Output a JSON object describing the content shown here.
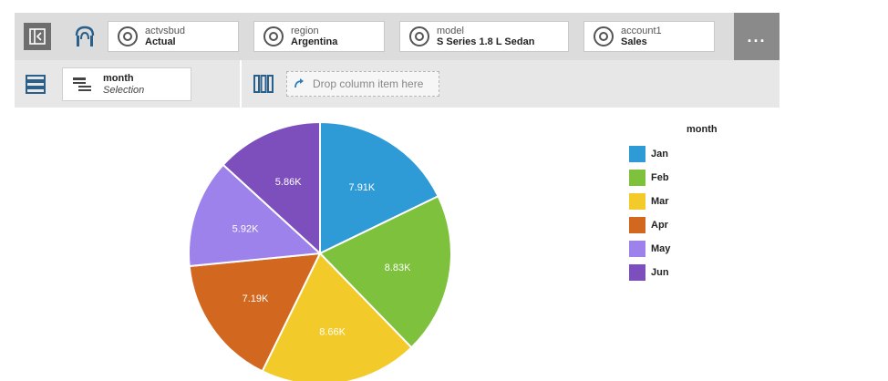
{
  "filters": [
    {
      "name": "actvsbud",
      "value": "Actual"
    },
    {
      "name": "region",
      "value": "Argentina"
    },
    {
      "name": "model",
      "value": "S Series 1.8 L Sedan"
    },
    {
      "name": "account1",
      "value": "Sales"
    }
  ],
  "more_label": "...",
  "row_item": {
    "name": "month",
    "value": "Selection"
  },
  "drop_placeholder": "Drop column item here",
  "legend_title": "month",
  "chart_data": {
    "type": "pie",
    "labels": [
      "Jan",
      "Feb",
      "Mar",
      "Apr",
      "May",
      "Jun"
    ],
    "values": [
      7.91,
      8.83,
      8.66,
      7.19,
      5.92,
      5.86
    ],
    "data_labels": [
      "7.91K",
      "8.83K",
      "8.66K",
      "7.19K",
      "5.92K",
      "5.86K"
    ],
    "colors": [
      "#2e9bd6",
      "#7dc13c",
      "#f2cb2a",
      "#d2671f",
      "#9c82ea",
      "#7d4fbd"
    ],
    "legend_position": "right"
  }
}
